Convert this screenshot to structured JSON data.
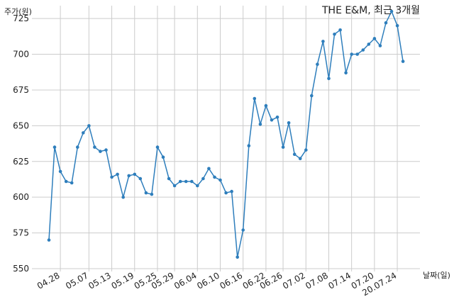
{
  "chart_data": {
    "type": "line",
    "title": "THE E&M, 최근 3개월",
    "ylabel": "주가(원)",
    "xlabel": "날짜(일)",
    "ylim": [
      548,
      734
    ],
    "yticks": [
      550,
      575,
      600,
      625,
      650,
      675,
      700,
      725
    ],
    "xtick_labels": [
      "04.28",
      "05.07",
      "05.13",
      "05.19",
      "05.25",
      "05.29",
      "06.04",
      "06.10",
      "06.16",
      "06.22",
      "06.26",
      "07.02",
      "07.08",
      "07.14",
      "07.20",
      "20.07.24"
    ],
    "xtick_positions": [
      2,
      7,
      11,
      15,
      19,
      22,
      26,
      30,
      34,
      38,
      41,
      45,
      49,
      53,
      57,
      61
    ],
    "grid": true,
    "series": [
      {
        "color": "#2e7ebc",
        "values": [
          570,
          635,
          618,
          611,
          610,
          635,
          645,
          650,
          635,
          632,
          633,
          614,
          616,
          600,
          615,
          616,
          613,
          603,
          602,
          635,
          628,
          613,
          608,
          611,
          611,
          611,
          608,
          613,
          620,
          614,
          612,
          603,
          604,
          558,
          577,
          636,
          669,
          651,
          664,
          654,
          656,
          635,
          652,
          630,
          627,
          633,
          671,
          693,
          709,
          683,
          714,
          717,
          687,
          700,
          700,
          703,
          707,
          711,
          706,
          722,
          730,
          720,
          695
        ]
      }
    ]
  }
}
